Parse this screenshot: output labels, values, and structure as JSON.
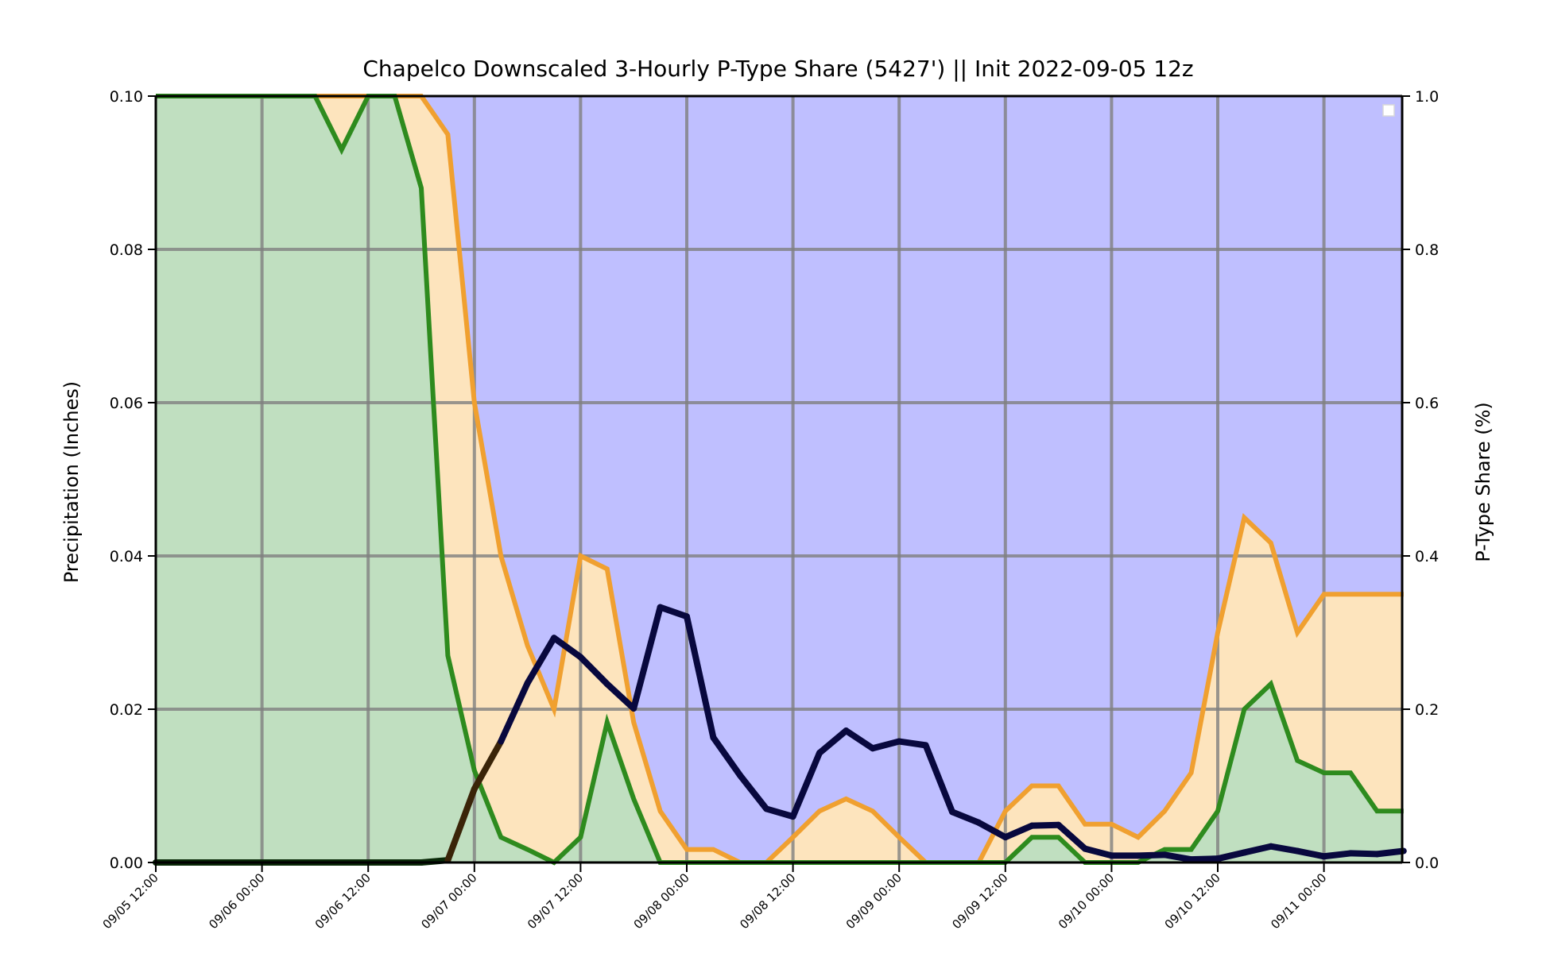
{
  "chart_data": {
    "type": "area",
    "title": "Chapelco Downscaled 3-Hourly P-Type Share (5427') || Init 2022-09-05 12z",
    "ylabel": "Precipitation (Inches)",
    "y2label": "P-Type Share (%)",
    "ylim": [
      0,
      0.1
    ],
    "y2lim": [
      0,
      1
    ],
    "yticks": [
      "0.00",
      "0.02",
      "0.04",
      "0.06",
      "0.08",
      "0.10"
    ],
    "y2ticks": [
      "0.0",
      "0.2",
      "0.4",
      "0.6",
      "0.8",
      "1.0"
    ],
    "xticks": [
      "09/05 12:00",
      "09/06 00:00",
      "09/06 12:00",
      "09/07 00:00",
      "09/07 12:00",
      "09/08 00:00",
      "09/08 12:00",
      "09/09 00:00",
      "09/09 12:00",
      "09/10 00:00",
      "09/10 12:00",
      "09/11 00:00"
    ],
    "x_hours_start": "09/05 12:00",
    "x_step_hours": 3,
    "x_hours_end": "09/11 09:00",
    "grid": true,
    "legend": "top-right (empty)",
    "colors": {
      "rain_fill": "#c0dfc0",
      "rain_line": "#2e8b1e",
      "mix_fill": "#fde4bd",
      "mix_line": "#f0a030",
      "snow_fill": "#bfbfff",
      "precip_line_snow": "#08083e",
      "precip_line_mix": "#3a2408",
      "precip_line_rain": "#0a2a08",
      "grid": "#7f7f7f"
    },
    "series": [
      {
        "values": [
          1.0,
          1.0,
          1.0,
          1.0,
          1.0,
          1.0,
          1.0,
          0.93,
          1.0,
          1.0,
          0.88,
          0.27,
          0.12,
          0.033,
          0.017,
          0.0,
          0.033,
          0.183,
          0.083,
          0.0,
          0.0,
          0.0,
          0.0,
          0.0,
          0.0,
          0.0,
          0.0,
          0.0,
          0.0,
          0.0,
          0.0,
          0.0,
          0.0,
          0.033,
          0.033,
          0.0,
          0.0,
          0.0,
          0.017,
          0.017,
          0.067,
          0.2,
          0.233,
          0.133,
          0.117,
          0.117,
          0.067,
          0.067
        ]
      },
      {
        "values": [
          1.0,
          1.0,
          1.0,
          1.0,
          1.0,
          1.0,
          1.0,
          1.0,
          1.0,
          1.0,
          1.0,
          0.95,
          0.6,
          0.4,
          0.283,
          0.2,
          0.4,
          0.383,
          0.183,
          0.067,
          0.017,
          0.017,
          0.0,
          0.0,
          0.033,
          0.067,
          0.083,
          0.067,
          0.033,
          0.0,
          0.0,
          0.0,
          0.067,
          0.1,
          0.1,
          0.05,
          0.05,
          0.033,
          0.067,
          0.117,
          0.3,
          0.45,
          0.417,
          0.3,
          0.35,
          0.35,
          0.35,
          0.35
        ]
      },
      {
        "values": [
          0.0,
          0.0,
          0.0,
          0.0,
          0.0,
          0.0,
          0.0,
          0.0,
          0.0,
          0.0,
          0.0,
          0.0003,
          0.0096,
          0.0158,
          0.0234,
          0.0293,
          0.0268,
          0.0233,
          0.0201,
          0.0333,
          0.0321,
          0.0163,
          0.0114,
          0.007,
          0.006,
          0.0143,
          0.0172,
          0.0149,
          0.0158,
          0.0153,
          0.0066,
          0.0052,
          0.0033,
          0.0048,
          0.0049,
          0.0018,
          0.0009,
          0.0009,
          0.001,
          0.0004,
          0.0005,
          0.0013,
          0.0021,
          0.0015,
          0.0008,
          0.0012,
          0.0011,
          0.0015
        ]
      }
    ]
  }
}
